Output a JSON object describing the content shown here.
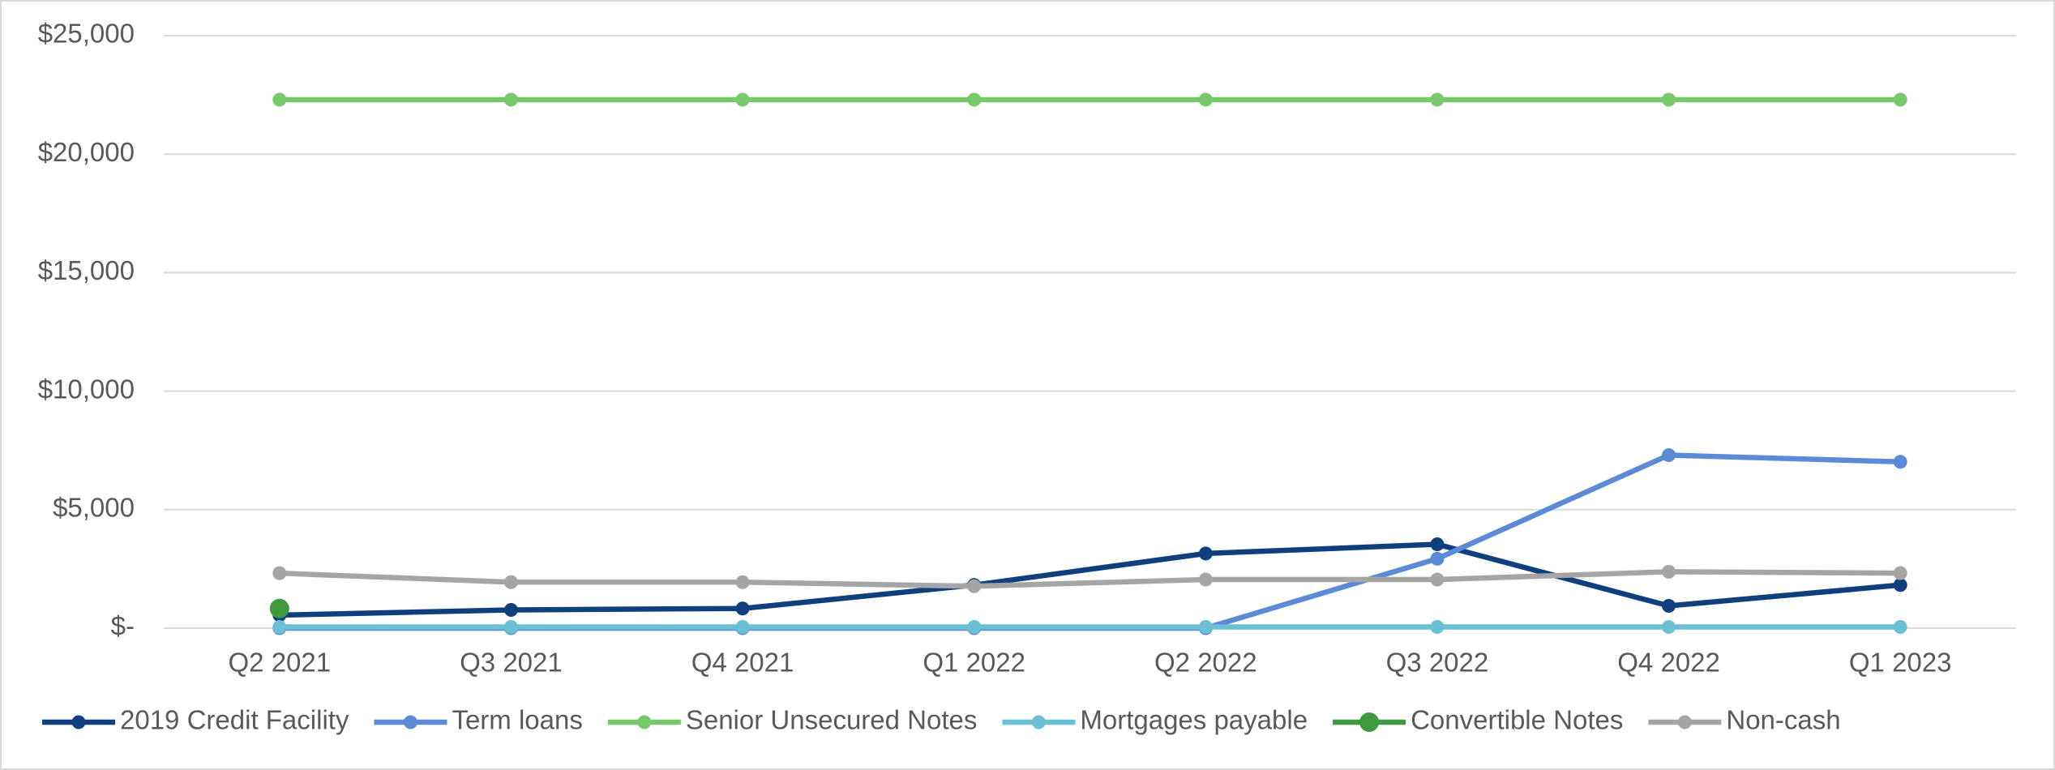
{
  "chart_data": {
    "type": "line",
    "categories": [
      "Q2 2021",
      "Q3 2021",
      "Q4 2021",
      "Q1 2022",
      "Q2 2022",
      "Q3 2022",
      "Q4 2022",
      "Q1 2023"
    ],
    "series": [
      {
        "name": "2019 Credit Facility",
        "color": "#0f3f7c",
        "values": [
          550,
          770,
          830,
          1820,
          3150,
          3540,
          940,
          1820
        ]
      },
      {
        "name": "Term loans",
        "color": "#5b8bd6",
        "values": [
          0,
          0,
          0,
          0,
          0,
          2930,
          7300,
          7020
        ]
      },
      {
        "name": "Senior Unsecured Notes",
        "color": "#77c96b",
        "values": [
          22300,
          22300,
          22300,
          22300,
          22300,
          22300,
          22300,
          22300
        ]
      },
      {
        "name": "Mortgages payable",
        "color": "#6cc0d4",
        "values": [
          50,
          50,
          50,
          50,
          50,
          50,
          50,
          50
        ]
      },
      {
        "name": "Convertible Notes",
        "color": "#3f9a3f",
        "values": [
          830,
          null,
          null,
          null,
          null,
          null,
          null,
          null
        ]
      },
      {
        "name": "Non-cash",
        "color": "#a5a5a5",
        "values": [
          2320,
          1940,
          1940,
          1770,
          2050,
          2050,
          2380,
          2320
        ]
      }
    ],
    "ylim": [
      0,
      25000
    ],
    "yticks": [
      {
        "value": 0,
        "label": "$-"
      },
      {
        "value": 5000,
        "label": "$5,000"
      },
      {
        "value": 10000,
        "label": "$10,000"
      },
      {
        "value": 15000,
        "label": "$15,000"
      },
      {
        "value": 20000,
        "label": "$20,000"
      },
      {
        "value": 25000,
        "label": "$25,000"
      }
    ],
    "grid": true,
    "legend": "bottom"
  }
}
